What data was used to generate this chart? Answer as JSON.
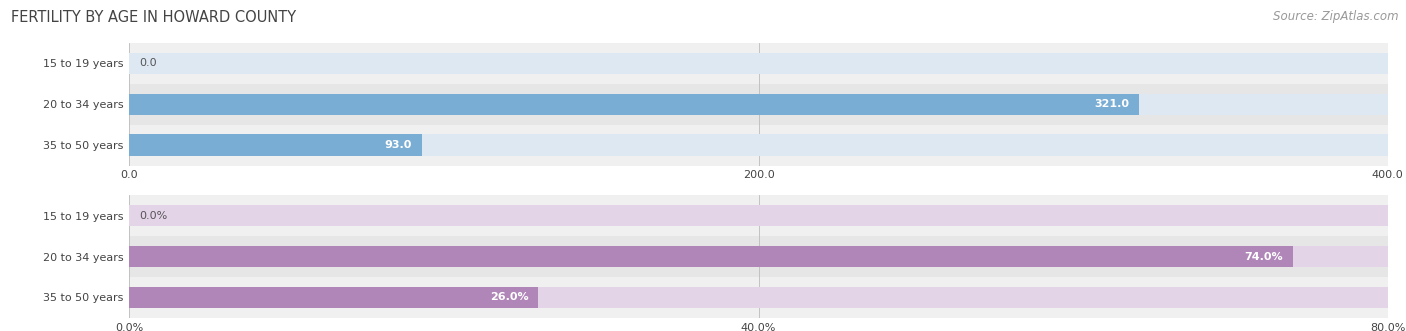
{
  "title": "FERTILITY BY AGE IN HOWARD COUNTY",
  "source": "Source: ZipAtlas.com",
  "top_chart": {
    "categories": [
      "15 to 19 years",
      "20 to 34 years",
      "35 to 50 years"
    ],
    "values": [
      0.0,
      321.0,
      93.0
    ],
    "xlim": [
      0,
      400
    ],
    "xticks": [
      0.0,
      200.0,
      400.0
    ],
    "xtick_labels": [
      "0.0",
      "200.0",
      "400.0"
    ],
    "bar_color": "#7aadd4",
    "bar_bg_color": "#dde8f3",
    "label_inside_color": "#ffffff",
    "label_outside_color": "#555555",
    "value_labels": [
      "0.0",
      "321.0",
      "93.0"
    ]
  },
  "bottom_chart": {
    "categories": [
      "15 to 19 years",
      "20 to 34 years",
      "35 to 50 years"
    ],
    "values": [
      0.0,
      74.0,
      26.0
    ],
    "xlim": [
      0,
      80
    ],
    "xticks": [
      0.0,
      40.0,
      80.0
    ],
    "xtick_labels": [
      "0.0%",
      "40.0%",
      "80.0%"
    ],
    "bar_color": "#b085b8",
    "bar_bg_color": "#e4d4e8",
    "label_inside_color": "#ffffff",
    "label_outside_color": "#555555",
    "value_labels": [
      "0.0%",
      "74.0%",
      "26.0%"
    ]
  },
  "title_color": "#444444",
  "source_color": "#999999",
  "title_fontsize": 10.5,
  "source_fontsize": 8.5,
  "label_fontsize": 8,
  "tick_fontsize": 8,
  "bar_height": 0.52,
  "bg_color": "#ffffff",
  "row_bg_even": "#f0f0f0",
  "row_bg_odd": "#e6e6e6"
}
